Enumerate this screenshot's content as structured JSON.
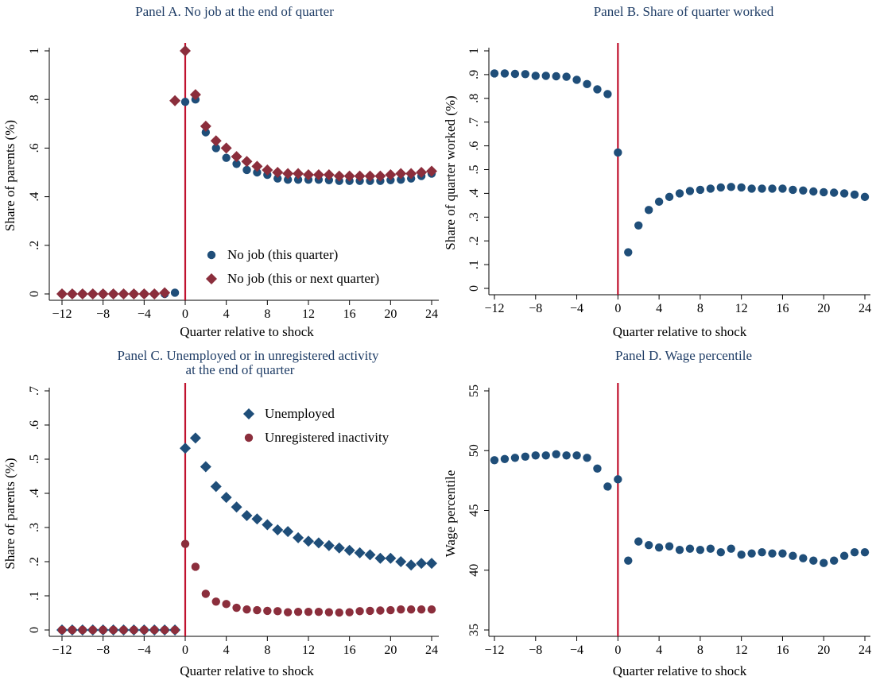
{
  "figure": {
    "colors": {
      "navy": "#1f4e79",
      "maroon": "#8b2e3c",
      "vline": "#c0122e",
      "title": "#1f3d66",
      "axis": "#000000"
    }
  },
  "chart_data": [
    {
      "type": "scatter",
      "title": "Panel A. No job at the end of quarter",
      "xlabel": "Quarter relative to shock",
      "ylabel": "Share of parents (%)",
      "xlim": [
        -12,
        24
      ],
      "ylim": [
        0,
        1
      ],
      "xticks": [
        -12,
        -8,
        -4,
        0,
        4,
        8,
        12,
        16,
        20,
        24
      ],
      "xtick_labels": [
        "−12",
        "−8",
        "−4",
        "0",
        "4",
        "8",
        "12",
        "16",
        "20",
        "24"
      ],
      "yticks": [
        0,
        0.2,
        0.4,
        0.6,
        0.8,
        1
      ],
      "ytick_labels": [
        "0",
        ".2",
        ".4",
        ".6",
        ".8",
        "1"
      ],
      "vline": 0,
      "legend": "bottom-right",
      "series": [
        {
          "name": "No job (this  quarter)",
          "marker": "circle",
          "color": "#1f4e79",
          "x": [
            -12,
            -11,
            -10,
            -9,
            -8,
            -7,
            -6,
            -5,
            -4,
            -3,
            -2,
            -1,
            0,
            1,
            2,
            3,
            4,
            5,
            6,
            7,
            8,
            9,
            10,
            11,
            12,
            13,
            14,
            15,
            16,
            17,
            18,
            19,
            20,
            21,
            22,
            23,
            24
          ],
          "y": [
            0,
            0,
            0,
            0,
            0,
            0,
            0,
            0,
            0,
            0,
            0,
            0.005,
            0.79,
            0.8,
            0.665,
            0.6,
            0.56,
            0.535,
            0.51,
            0.5,
            0.49,
            0.475,
            0.47,
            0.47,
            0.47,
            0.47,
            0.468,
            0.465,
            0.465,
            0.465,
            0.465,
            0.465,
            0.468,
            0.47,
            0.475,
            0.485,
            0.495
          ]
        },
        {
          "name": "No job (this or next quarter)",
          "marker": "diamond",
          "color": "#8b2e3c",
          "x": [
            -12,
            -11,
            -10,
            -9,
            -8,
            -7,
            -6,
            -5,
            -4,
            -3,
            -2,
            -1,
            0,
            1,
            2,
            3,
            4,
            5,
            6,
            7,
            8,
            9,
            10,
            11,
            12,
            13,
            14,
            15,
            16,
            17,
            18,
            19,
            20,
            21,
            22,
            23,
            24
          ],
          "y": [
            0,
            0,
            0,
            0,
            0,
            0,
            0,
            0,
            0,
            0,
            0.005,
            0.795,
            1.0,
            0.82,
            0.69,
            0.63,
            0.6,
            0.565,
            0.545,
            0.525,
            0.51,
            0.5,
            0.495,
            0.495,
            0.49,
            0.49,
            0.49,
            0.485,
            0.485,
            0.485,
            0.485,
            0.485,
            0.49,
            0.495,
            0.495,
            0.5,
            0.505
          ]
        }
      ]
    },
    {
      "type": "scatter",
      "title": "Panel B. Share of quarter worked",
      "xlabel": "Quarter relative to shock",
      "ylabel": "Share of quarter worked (%)",
      "xlim": [
        -12,
        24
      ],
      "ylim": [
        0,
        1
      ],
      "xticks": [
        -12,
        -8,
        -4,
        0,
        4,
        8,
        12,
        16,
        20,
        24
      ],
      "xtick_labels": [
        "−12",
        "−8",
        "−4",
        "0",
        "4",
        "8",
        "12",
        "16",
        "20",
        "24"
      ],
      "yticks": [
        0,
        0.1,
        0.2,
        0.3,
        0.4,
        0.5,
        0.6,
        0.7,
        0.8,
        0.9,
        1
      ],
      "ytick_labels": [
        "0",
        ".1",
        ".2",
        ".3",
        ".4",
        ".5",
        ".6",
        ".7",
        ".8",
        ".9",
        "1"
      ],
      "vline": 0,
      "series": [
        {
          "marker": "circle",
          "color": "#1f4e79",
          "x": [
            -12,
            -11,
            -10,
            -9,
            -8,
            -7,
            -6,
            -5,
            -4,
            -3,
            -2,
            -1,
            0,
            1,
            2,
            3,
            4,
            5,
            6,
            7,
            8,
            9,
            10,
            11,
            12,
            13,
            14,
            15,
            16,
            17,
            18,
            19,
            20,
            21,
            22,
            23,
            24
          ],
          "y": [
            0.905,
            0.905,
            0.903,
            0.902,
            0.895,
            0.895,
            0.893,
            0.891,
            0.878,
            0.86,
            0.838,
            0.818,
            0.572,
            0.152,
            0.265,
            0.33,
            0.365,
            0.385,
            0.4,
            0.41,
            0.415,
            0.42,
            0.425,
            0.427,
            0.425,
            0.42,
            0.42,
            0.42,
            0.42,
            0.415,
            0.412,
            0.408,
            0.405,
            0.403,
            0.4,
            0.395,
            0.385
          ]
        }
      ]
    },
    {
      "type": "scatter",
      "title": "Panel C. Unemployed or in unregistered activity",
      "title_line2": "at the end of quarter",
      "xlabel": "Quarter relative to shock",
      "ylabel": "Share of parents (%)",
      "xlim": [
        -12,
        24
      ],
      "ylim": [
        0,
        0.7
      ],
      "xticks": [
        -12,
        -8,
        -4,
        0,
        4,
        8,
        12,
        16,
        20,
        24
      ],
      "xtick_labels": [
        "−12",
        "−8",
        "−4",
        "0",
        "4",
        "8",
        "12",
        "16",
        "20",
        "24"
      ],
      "yticks": [
        0,
        0.1,
        0.2,
        0.3,
        0.4,
        0.5,
        0.6,
        0.7
      ],
      "ytick_labels": [
        "0",
        ".1",
        ".2",
        ".3",
        ".4",
        ".5",
        ".6",
        ".7"
      ],
      "vline": 0,
      "legend": "top-right",
      "series": [
        {
          "name": "Unemployed",
          "marker": "diamond",
          "color": "#1f4e79",
          "x": [
            -12,
            -11,
            -10,
            -9,
            -8,
            -7,
            -6,
            -5,
            -4,
            -3,
            -2,
            -1,
            0,
            1,
            2,
            3,
            4,
            5,
            6,
            7,
            8,
            9,
            10,
            11,
            12,
            13,
            14,
            15,
            16,
            17,
            18,
            19,
            20,
            21,
            22,
            23,
            24
          ],
          "y": [
            0,
            0,
            0,
            0,
            0,
            0,
            0,
            0,
            0,
            0,
            0,
            0,
            0.532,
            0.562,
            0.478,
            0.42,
            0.388,
            0.36,
            0.335,
            0.325,
            0.308,
            0.293,
            0.288,
            0.27,
            0.26,
            0.255,
            0.247,
            0.24,
            0.233,
            0.226,
            0.22,
            0.21,
            0.21,
            0.2,
            0.19,
            0.195,
            0.195
          ]
        },
        {
          "name": "Unregistered inactivity",
          "marker": "circle",
          "color": "#8b2e3c",
          "x": [
            -12,
            -11,
            -10,
            -9,
            -8,
            -7,
            -6,
            -5,
            -4,
            -3,
            -2,
            -1,
            0,
            1,
            2,
            3,
            4,
            5,
            6,
            7,
            8,
            9,
            10,
            11,
            12,
            13,
            14,
            15,
            16,
            17,
            18,
            19,
            20,
            21,
            22,
            23,
            24
          ],
          "y": [
            0,
            0,
            0,
            0,
            0,
            0,
            0,
            0,
            0,
            0,
            0,
            0,
            0.252,
            0.185,
            0.106,
            0.083,
            0.076,
            0.065,
            0.06,
            0.058,
            0.056,
            0.055,
            0.052,
            0.053,
            0.053,
            0.053,
            0.052,
            0.051,
            0.052,
            0.055,
            0.056,
            0.057,
            0.058,
            0.06,
            0.06,
            0.06,
            0.06
          ]
        }
      ]
    },
    {
      "type": "scatter",
      "title": "Panel D. Wage percentile",
      "xlabel": "Quarter relative to shock",
      "ylabel": "Wage percentile",
      "xlim": [
        -12,
        24
      ],
      "ylim": [
        35,
        55
      ],
      "xticks": [
        -12,
        -8,
        -4,
        0,
        4,
        8,
        12,
        16,
        20,
        24
      ],
      "xtick_labels": [
        "−12",
        "−8",
        "−4",
        "0",
        "4",
        "8",
        "12",
        "16",
        "20",
        "24"
      ],
      "yticks": [
        35,
        40,
        45,
        50,
        55
      ],
      "ytick_labels": [
        "35",
        "40",
        "45",
        "50",
        "55"
      ],
      "vline": 0,
      "series": [
        {
          "marker": "circle",
          "color": "#1f4e79",
          "x": [
            -12,
            -11,
            -10,
            -9,
            -8,
            -7,
            -6,
            -5,
            -4,
            -3,
            -2,
            -1,
            0,
            1,
            2,
            3,
            4,
            5,
            6,
            7,
            8,
            9,
            10,
            11,
            12,
            13,
            14,
            15,
            16,
            17,
            18,
            19,
            20,
            21,
            22,
            23,
            24
          ],
          "y": [
            49.2,
            49.3,
            49.4,
            49.5,
            49.6,
            49.6,
            49.7,
            49.6,
            49.6,
            49.4,
            48.5,
            47.0,
            47.6,
            40.8,
            42.4,
            42.1,
            41.9,
            42.0,
            41.7,
            41.8,
            41.7,
            41.8,
            41.5,
            41.8,
            41.3,
            41.4,
            41.5,
            41.4,
            41.4,
            41.2,
            41.0,
            40.8,
            40.6,
            40.8,
            41.2,
            41.5,
            41.5
          ]
        }
      ]
    }
  ]
}
